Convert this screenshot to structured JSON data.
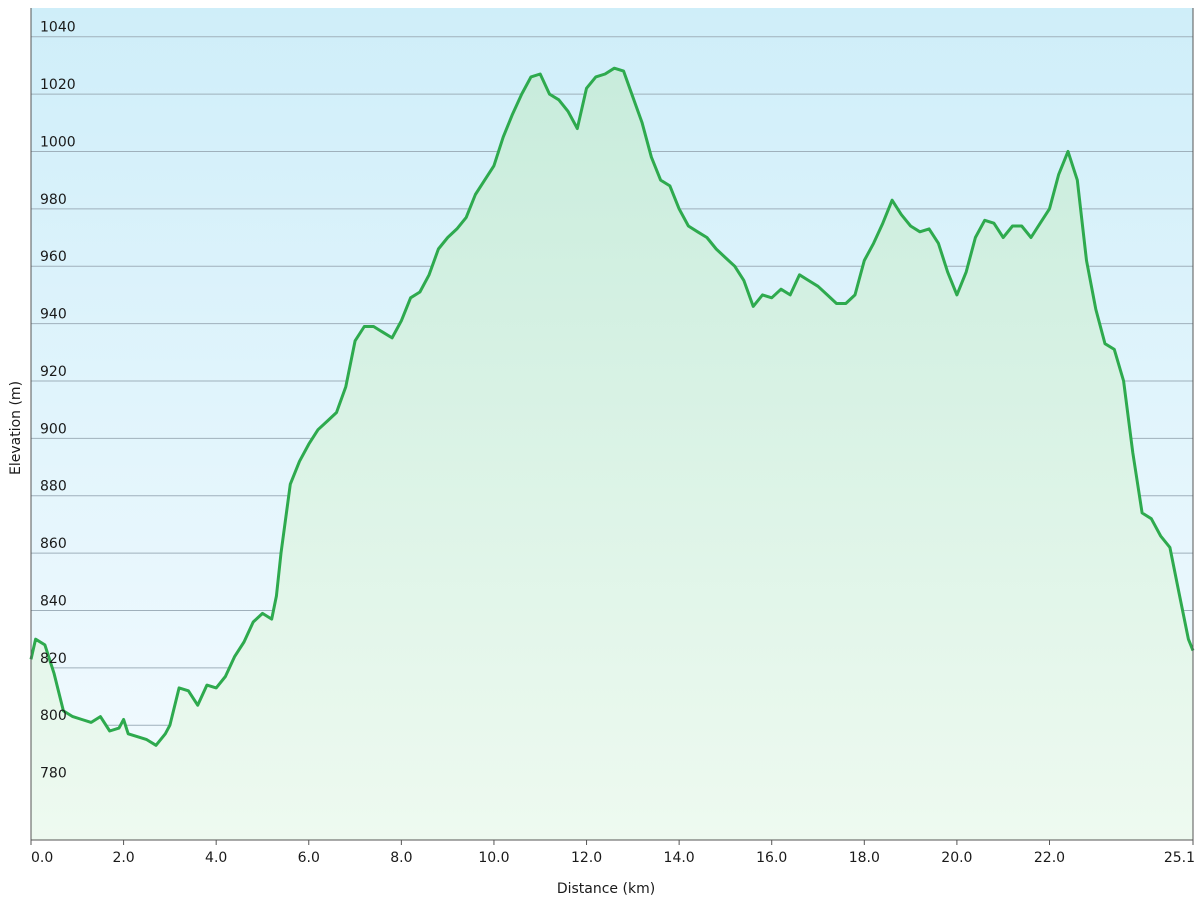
{
  "chart_data": {
    "type": "area",
    "xlabel": "Distance  (km)",
    "ylabel": "Elevation (m)",
    "xlim": [
      0,
      25.1
    ],
    "ylim": [
      760,
      1050
    ],
    "x_ticks": [
      {
        "value": 0,
        "label": "0.0"
      },
      {
        "value": 2,
        "label": "2.0"
      },
      {
        "value": 4,
        "label": "4.0"
      },
      {
        "value": 6,
        "label": "6.0"
      },
      {
        "value": 8,
        "label": "8.0"
      },
      {
        "value": 10,
        "label": "10.0"
      },
      {
        "value": 12,
        "label": "12.0"
      },
      {
        "value": 14,
        "label": "14.0"
      },
      {
        "value": 16,
        "label": "16.0"
      },
      {
        "value": 18,
        "label": "18.0"
      },
      {
        "value": 20,
        "label": "20.0"
      },
      {
        "value": 22,
        "label": "22.0"
      },
      {
        "value": 25.1,
        "label": "25.1"
      }
    ],
    "y_ticks": [
      {
        "value": 780,
        "label": "780"
      },
      {
        "value": 800,
        "label": "800"
      },
      {
        "value": 820,
        "label": "820"
      },
      {
        "value": 840,
        "label": "840"
      },
      {
        "value": 860,
        "label": "860"
      },
      {
        "value": 880,
        "label": "880"
      },
      {
        "value": 900,
        "label": "900"
      },
      {
        "value": 920,
        "label": "920"
      },
      {
        "value": 940,
        "label": "940"
      },
      {
        "value": 960,
        "label": "960"
      },
      {
        "value": 980,
        "label": "980"
      },
      {
        "value": 1000,
        "label": "1000"
      },
      {
        "value": 1020,
        "label": "1020"
      },
      {
        "value": 1040,
        "label": "1040"
      }
    ],
    "grid": true,
    "colors": {
      "line": "#2eaa4e",
      "fill_top": "#c8ecdc",
      "fill_bottom": "#eefaf0",
      "bg_top": "#cfeef9",
      "bg_bottom": "#f4fbff",
      "grid": "#9fb0bb"
    },
    "series": [
      {
        "x": [
          0,
          0.1,
          0.3,
          0.5,
          0.7,
          0.9,
          1.1,
          1.3,
          1.5,
          1.7,
          1.9,
          2.0,
          2.1,
          2.3,
          2.5,
          2.7,
          2.9,
          3.0,
          3.2,
          3.4,
          3.6,
          3.8,
          4.0,
          4.2,
          4.4,
          4.6,
          4.8,
          5.0,
          5.2,
          5.3,
          5.4,
          5.6,
          5.8,
          6.0,
          6.2,
          6.4,
          6.6,
          6.8,
          7.0,
          7.2,
          7.4,
          7.6,
          7.8,
          8.0,
          8.2,
          8.4,
          8.6,
          8.8,
          9.0,
          9.2,
          9.4,
          9.6,
          9.8,
          10.0,
          10.2,
          10.4,
          10.6,
          10.8,
          11.0,
          11.2,
          11.4,
          11.6,
          11.8,
          11.9,
          12.0,
          12.2,
          12.4,
          12.6,
          12.8,
          13.0,
          13.2,
          13.4,
          13.6,
          13.8,
          14.0,
          14.2,
          14.4,
          14.6,
          14.8,
          15.0,
          15.2,
          15.4,
          15.6,
          15.8,
          16.0,
          16.2,
          16.4,
          16.6,
          16.8,
          17.0,
          17.2,
          17.4,
          17.6,
          17.8,
          18.0,
          18.2,
          18.4,
          18.6,
          18.8,
          19.0,
          19.2,
          19.4,
          19.6,
          19.8,
          20.0,
          20.2,
          20.4,
          20.6,
          20.8,
          21.0,
          21.2,
          21.4,
          21.6,
          21.8,
          22.0,
          22.2,
          22.4,
          22.6,
          22.8,
          23.0,
          23.2,
          23.4,
          23.6,
          23.8,
          24.0,
          24.2,
          24.4,
          24.6,
          24.8,
          25.0,
          25.1
        ],
        "values": [
          823,
          830,
          828,
          818,
          805,
          803,
          802,
          801,
          803,
          798,
          799,
          802,
          797,
          796,
          795,
          793,
          797,
          800,
          813,
          812,
          807,
          814,
          813,
          817,
          824,
          829,
          836,
          839,
          837,
          845,
          860,
          884,
          892,
          898,
          903,
          906,
          909,
          918,
          934,
          939,
          939,
          937,
          935,
          941,
          949,
          951,
          957,
          966,
          970,
          973,
          977,
          985,
          990,
          995,
          1005,
          1013,
          1020,
          1026,
          1027,
          1020,
          1018,
          1014,
          1008,
          1015,
          1022,
          1026,
          1027,
          1029,
          1028,
          1019,
          1010,
          998,
          990,
          988,
          980,
          974,
          972,
          970,
          966,
          963,
          960,
          955,
          946,
          950,
          949,
          952,
          950,
          957,
          955,
          953,
          950,
          947,
          947,
          950,
          962,
          968,
          975,
          983,
          978,
          974,
          972,
          973,
          968,
          958,
          950,
          958,
          970,
          976,
          975,
          970,
          974,
          974,
          970,
          975,
          980,
          992,
          1000,
          990,
          962,
          945,
          933,
          931,
          920,
          895,
          874,
          872,
          866,
          862,
          846,
          830,
          826
        ]
      }
    ]
  }
}
